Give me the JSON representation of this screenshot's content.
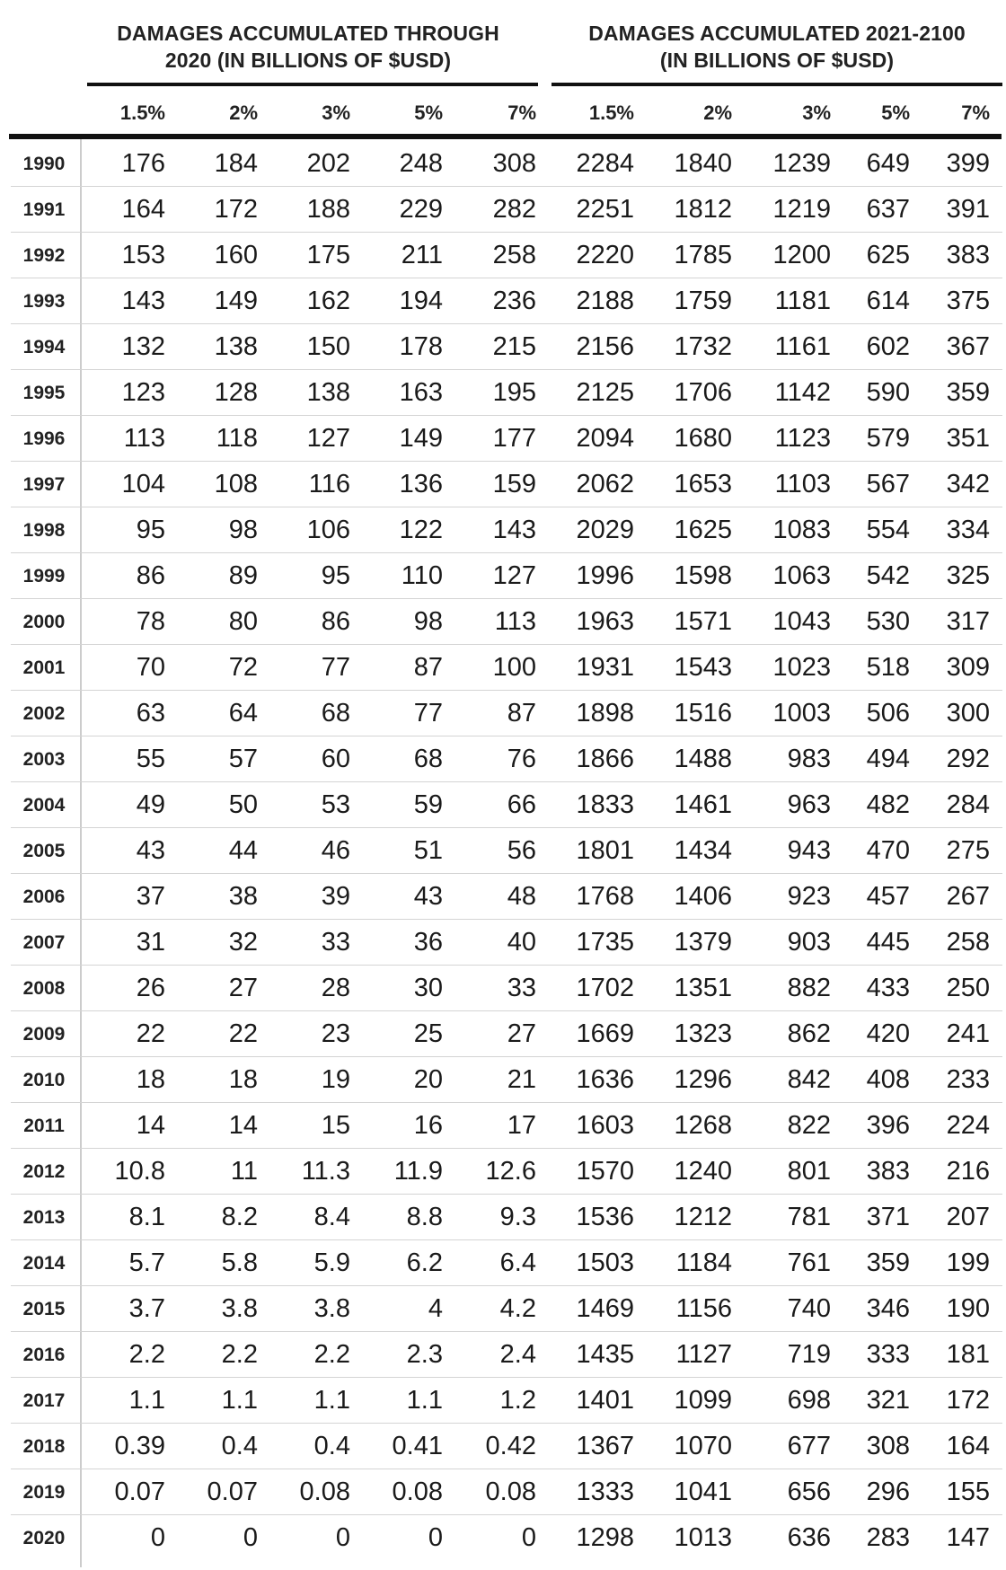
{
  "chart_data": {
    "type": "table",
    "column_groups": [
      {
        "title_lines": [
          "DAMAGES ACCUMULATED THROUGH",
          "2020 (IN BILLIONS OF $USD)"
        ],
        "columns": [
          "1.5%",
          "2%",
          "3%",
          "5%",
          "7%"
        ]
      },
      {
        "title_lines": [
          "DAMAGES ACCUMULATED 2021-2100",
          "(IN BILLIONS OF $USD)"
        ],
        "columns": [
          "1.5%",
          "2%",
          "3%",
          "5%",
          "7%"
        ]
      }
    ],
    "rows": [
      {
        "year": "1990",
        "values": [
          "176",
          "184",
          "202",
          "248",
          "308",
          "2284",
          "1840",
          "1239",
          "649",
          "399"
        ]
      },
      {
        "year": "1991",
        "values": [
          "164",
          "172",
          "188",
          "229",
          "282",
          "2251",
          "1812",
          "1219",
          "637",
          "391"
        ]
      },
      {
        "year": "1992",
        "values": [
          "153",
          "160",
          "175",
          "211",
          "258",
          "2220",
          "1785",
          "1200",
          "625",
          "383"
        ]
      },
      {
        "year": "1993",
        "values": [
          "143",
          "149",
          "162",
          "194",
          "236",
          "2188",
          "1759",
          "1181",
          "614",
          "375"
        ]
      },
      {
        "year": "1994",
        "values": [
          "132",
          "138",
          "150",
          "178",
          "215",
          "2156",
          "1732",
          "1161",
          "602",
          "367"
        ]
      },
      {
        "year": "1995",
        "values": [
          "123",
          "128",
          "138",
          "163",
          "195",
          "2125",
          "1706",
          "1142",
          "590",
          "359"
        ]
      },
      {
        "year": "1996",
        "values": [
          "113",
          "118",
          "127",
          "149",
          "177",
          "2094",
          "1680",
          "1123",
          "579",
          "351"
        ]
      },
      {
        "year": "1997",
        "values": [
          "104",
          "108",
          "116",
          "136",
          "159",
          "2062",
          "1653",
          "1103",
          "567",
          "342"
        ]
      },
      {
        "year": "1998",
        "values": [
          "95",
          "98",
          "106",
          "122",
          "143",
          "2029",
          "1625",
          "1083",
          "554",
          "334"
        ]
      },
      {
        "year": "1999",
        "values": [
          "86",
          "89",
          "95",
          "110",
          "127",
          "1996",
          "1598",
          "1063",
          "542",
          "325"
        ]
      },
      {
        "year": "2000",
        "values": [
          "78",
          "80",
          "86",
          "98",
          "113",
          "1963",
          "1571",
          "1043",
          "530",
          "317"
        ]
      },
      {
        "year": "2001",
        "values": [
          "70",
          "72",
          "77",
          "87",
          "100",
          "1931",
          "1543",
          "1023",
          "518",
          "309"
        ]
      },
      {
        "year": "2002",
        "values": [
          "63",
          "64",
          "68",
          "77",
          "87",
          "1898",
          "1516",
          "1003",
          "506",
          "300"
        ]
      },
      {
        "year": "2003",
        "values": [
          "55",
          "57",
          "60",
          "68",
          "76",
          "1866",
          "1488",
          "983",
          "494",
          "292"
        ]
      },
      {
        "year": "2004",
        "values": [
          "49",
          "50",
          "53",
          "59",
          "66",
          "1833",
          "1461",
          "963",
          "482",
          "284"
        ]
      },
      {
        "year": "2005",
        "values": [
          "43",
          "44",
          "46",
          "51",
          "56",
          "1801",
          "1434",
          "943",
          "470",
          "275"
        ]
      },
      {
        "year": "2006",
        "values": [
          "37",
          "38",
          "39",
          "43",
          "48",
          "1768",
          "1406",
          "923",
          "457",
          "267"
        ]
      },
      {
        "year": "2007",
        "values": [
          "31",
          "32",
          "33",
          "36",
          "40",
          "1735",
          "1379",
          "903",
          "445",
          "258"
        ]
      },
      {
        "year": "2008",
        "values": [
          "26",
          "27",
          "28",
          "30",
          "33",
          "1702",
          "1351",
          "882",
          "433",
          "250"
        ]
      },
      {
        "year": "2009",
        "values": [
          "22",
          "22",
          "23",
          "25",
          "27",
          "1669",
          "1323",
          "862",
          "420",
          "241"
        ]
      },
      {
        "year": "2010",
        "values": [
          "18",
          "18",
          "19",
          "20",
          "21",
          "1636",
          "1296",
          "842",
          "408",
          "233"
        ]
      },
      {
        "year": "2011",
        "values": [
          "14",
          "14",
          "15",
          "16",
          "17",
          "1603",
          "1268",
          "822",
          "396",
          "224"
        ]
      },
      {
        "year": "2012",
        "values": [
          "10.8",
          "11",
          "11.3",
          "11.9",
          "12.6",
          "1570",
          "1240",
          "801",
          "383",
          "216"
        ]
      },
      {
        "year": "2013",
        "values": [
          "8.1",
          "8.2",
          "8.4",
          "8.8",
          "9.3",
          "1536",
          "1212",
          "781",
          "371",
          "207"
        ]
      },
      {
        "year": "2014",
        "values": [
          "5.7",
          "5.8",
          "5.9",
          "6.2",
          "6.4",
          "1503",
          "1184",
          "761",
          "359",
          "199"
        ]
      },
      {
        "year": "2015",
        "values": [
          "3.7",
          "3.8",
          "3.8",
          "4",
          "4.2",
          "1469",
          "1156",
          "740",
          "346",
          "190"
        ]
      },
      {
        "year": "2016",
        "values": [
          "2.2",
          "2.2",
          "2.2",
          "2.3",
          "2.4",
          "1435",
          "1127",
          "719",
          "333",
          "181"
        ]
      },
      {
        "year": "2017",
        "values": [
          "1.1",
          "1.1",
          "1.1",
          "1.1",
          "1.2",
          "1401",
          "1099",
          "698",
          "321",
          "172"
        ]
      },
      {
        "year": "2018",
        "values": [
          "0.39",
          "0.4",
          "0.4",
          "0.41",
          "0.42",
          "1367",
          "1070",
          "677",
          "308",
          "164"
        ]
      },
      {
        "year": "2019",
        "values": [
          "0.07",
          "0.07",
          "0.08",
          "0.08",
          "0.08",
          "1333",
          "1041",
          "656",
          "296",
          "155"
        ]
      },
      {
        "year": "2020",
        "values": [
          "0",
          "0",
          "0",
          "0",
          "0",
          "1298",
          "1013",
          "636",
          "283",
          "147"
        ]
      }
    ]
  }
}
